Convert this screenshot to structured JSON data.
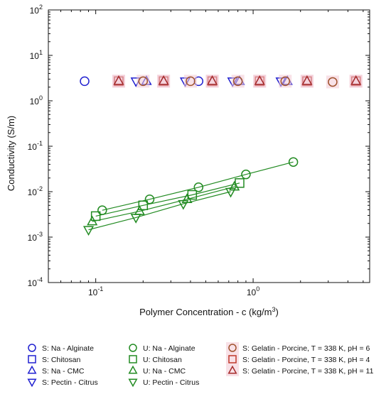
{
  "chart_data": {
    "type": "scatter",
    "xscale": "log",
    "yscale": "log",
    "xlim": [
      0.05,
      5.5
    ],
    "ylim": [
      0.0001,
      100
    ],
    "xlabel_main": "Polymer Concentration - c (kg/m",
    "xlabel_sup": "3",
    "xlabel_end": ")",
    "ylabel": "Conductivity (S/m)",
    "xticks": [
      {
        "value": 0.1,
        "base": "10",
        "exp": "-1"
      },
      {
        "value": 1,
        "base": "10",
        "exp": "0"
      }
    ],
    "yticks": [
      {
        "value": 0.0001,
        "base": "10",
        "exp": "-4"
      },
      {
        "value": 0.001,
        "base": "10",
        "exp": "-3"
      },
      {
        "value": 0.01,
        "base": "10",
        "exp": "-2"
      },
      {
        "value": 0.1,
        "base": "10",
        "exp": "-1"
      },
      {
        "value": 1,
        "base": "10",
        "exp": "0"
      },
      {
        "value": 10,
        "base": "10",
        "exp": "1"
      },
      {
        "value": 100,
        "base": "10",
        "exp": "2"
      }
    ],
    "legend_position": "bottom",
    "series": [
      {
        "name": "S: Na - Alginate",
        "marker": "circle",
        "color": "#2020d0",
        "line": false,
        "x": [
          0.085,
          0.45
        ],
        "y": [
          2.7,
          2.7
        ]
      },
      {
        "name": "S: Chitosan",
        "marker": "square",
        "color": "#2020d0",
        "line": false,
        "x": [
          0.14,
          0.27,
          0.55,
          1.1,
          2.2,
          4.5
        ],
        "y": [
          2.7,
          2.7,
          2.7,
          2.7,
          2.7,
          2.7
        ]
      },
      {
        "name": "S: Na - CMC",
        "marker": "triangle-up",
        "color": "#2020d0",
        "line": false,
        "x": [
          0.14,
          0.21,
          0.27,
          0.55,
          0.82,
          1.1,
          1.65,
          2.2,
          4.5
        ],
        "y": [
          2.7,
          2.7,
          2.7,
          2.7,
          2.7,
          2.7,
          2.7,
          2.7,
          2.7
        ]
      },
      {
        "name": "S: Pectin - Citrus",
        "marker": "triangle-down",
        "color": "#2020d0",
        "line": false,
        "x": [
          0.18,
          0.37,
          0.74,
          1.5
        ],
        "y": [
          2.7,
          2.7,
          2.7,
          2.7
        ]
      },
      {
        "name": "U: Na - Alginate",
        "marker": "circle",
        "color": "#228b22",
        "line": true,
        "x": [
          0.11,
          0.22,
          0.45,
          0.9,
          1.8
        ],
        "y": [
          0.0039,
          0.0068,
          0.0125,
          0.024,
          0.045
        ]
      },
      {
        "name": "U: Chitosan",
        "marker": "square",
        "color": "#228b22",
        "line": true,
        "x": [
          0.1,
          0.2,
          0.41,
          0.82
        ],
        "y": [
          0.0029,
          0.005,
          0.0085,
          0.0155
        ]
      },
      {
        "name": "U: Na - CMC",
        "marker": "triangle-up",
        "color": "#228b22",
        "line": true,
        "x": [
          0.095,
          0.19,
          0.38,
          0.76
        ],
        "y": [
          0.0022,
          0.0037,
          0.0068,
          0.0128
        ]
      },
      {
        "name": "U: Pectin - Citrus",
        "marker": "triangle-down",
        "color": "#228b22",
        "line": true,
        "x": [
          0.09,
          0.18,
          0.36,
          0.72
        ],
        "y": [
          0.00145,
          0.0027,
          0.0054,
          0.01
        ]
      },
      {
        "name": "S: Gelatin - Porcine, T = 338 K, pH = 6",
        "marker": "circle",
        "color": "#a0522d",
        "fill": "#f2c8d4",
        "line": false,
        "x": [
          0.2,
          0.4,
          0.8,
          1.6,
          3.2
        ],
        "y": [
          2.7,
          2.7,
          2.7,
          2.7,
          2.6
        ]
      },
      {
        "name": "S: Gelatin - Porcine, T = 338 K, pH = 4",
        "marker": "square",
        "color": "#c0392b",
        "fill": "#f2c8d4",
        "line": false,
        "x": [
          0.14,
          0.27,
          0.55,
          1.1,
          2.2,
          4.5
        ],
        "y": [
          2.7,
          2.7,
          2.7,
          2.7,
          2.7,
          2.7
        ]
      },
      {
        "name": "S: Gelatin - Porcine, T = 338 K, pH = 11",
        "marker": "triangle-up",
        "color": "#a52a2a",
        "fill": "#f2c8d4",
        "line": false,
        "x": [
          0.14,
          0.27,
          0.55,
          1.1,
          2.2,
          4.5
        ],
        "y": [
          2.7,
          2.7,
          2.7,
          2.7,
          2.7,
          2.7
        ]
      }
    ]
  }
}
